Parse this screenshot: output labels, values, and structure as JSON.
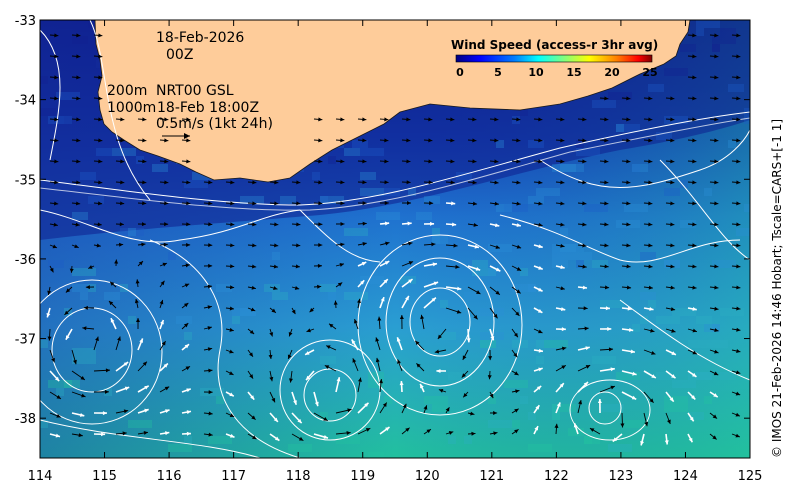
{
  "map": {
    "date_label": "18-Feb-2026",
    "time_label": "00Z",
    "isobath_label": "200m",
    "isobath2_label": "1000m",
    "overlay_label": "NRT00 GSL",
    "overlay_time": "18-Feb 18:00Z",
    "scale_label": "0.5m/s (1kt 24h)",
    "credit": "© IMOS 21-Feb-2026 14:46 Hobart; Tscale=CARS+[-1 1]",
    "colorbar": {
      "title": "Wind Speed (access-r 3hr avg)",
      "ticks": [
        "0",
        "5",
        "10",
        "15",
        "20",
        "25"
      ],
      "colors": [
        "#00007f",
        "#0000ff",
        "#007fff",
        "#00ffff",
        "#7fff7f",
        "#ffff00",
        "#ff7f00",
        "#ff0000",
        "#7f0000"
      ]
    },
    "x_axis": {
      "ticks": [
        "114",
        "115",
        "116",
        "117",
        "118",
        "119",
        "120",
        "121",
        "122",
        "123",
        "124",
        "125"
      ],
      "range": [
        114,
        125
      ]
    },
    "y_axis": {
      "ticks": [
        "-33",
        "-34",
        "-35",
        "-36",
        "-37",
        "-38"
      ],
      "range": [
        -38.5,
        -33
      ]
    },
    "land_color": "#fecc9a",
    "ocean_colors": [
      "#10208f",
      "#1e5cc9",
      "#2a8ed6",
      "#2cb0c4",
      "#22c2a0"
    ]
  }
}
